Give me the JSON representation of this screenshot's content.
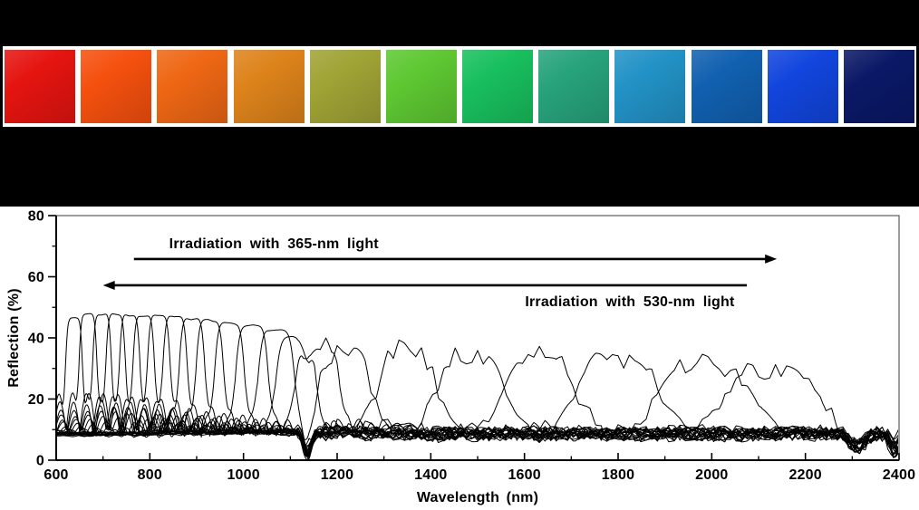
{
  "window": {
    "background": "#000000"
  },
  "swatch_strip": {
    "description": "photographs of the photonic film at successive irradiation states, red to blue",
    "panel_bg": "#ffffff",
    "colors": [
      "#e51410",
      "#f5500e",
      "#ee6714",
      "#dd831b",
      "#a0a335",
      "#5ec832",
      "#18bf5e",
      "#27a37b",
      "#2292c6",
      "#1160b0",
      "#1145dd",
      "#0a1866"
    ]
  },
  "chart_data": {
    "type": "line",
    "title": "",
    "xlabel": "Wavelength (nm)",
    "ylabel": "Reflection (%)",
    "xlim": [
      600,
      2400
    ],
    "ylim": [
      0,
      80
    ],
    "x_major_ticks": [
      600,
      800,
      1000,
      1200,
      1400,
      1600,
      1800,
      2000,
      2200,
      2400
    ],
    "x_minor_step": 100,
    "y_major_ticks": [
      0,
      20,
      40,
      60,
      80
    ],
    "y_minor_step": 10,
    "grid": false,
    "legend": "none",
    "line_color": "#000000",
    "frame_color": "#5a5a5a",
    "baseline_pct": 8.6,
    "annotations": [
      {
        "id": "uv",
        "text": "Irradiation with 365-nm light",
        "arrow_dir": "right",
        "arrow_from_nm": 766,
        "arrow_tip_nm": 2139,
        "arrow_y_pct": 65.8,
        "text_center_nm": 1065,
        "text_y_pct": 69.3
      },
      {
        "id": "vis",
        "text": "Irradiation with 530-nm light",
        "arrow_dir": "left",
        "arrow_from_nm": 2075,
        "arrow_tip_nm": 700,
        "arrow_y_pct": 57.2,
        "text_center_nm": 1825,
        "text_y_pct": 50.4
      }
    ],
    "series_description": "Reflection spectra; stop-band peak blue/red-shifts between ~640 nm and ~2200 nm upon 365-nm / 530-nm irradiation; each curve = one irradiation state (peak position, peak height %, FWHM nm, interference-fringe amplitude %).",
    "series": [
      {
        "peak_nm": 638,
        "peak_pct": 46.5,
        "fwhm_nm": 38,
        "fringe_amp_pct": 15.0,
        "kind": "narrow"
      },
      {
        "peak_nm": 668,
        "peak_pct": 47.0,
        "fwhm_nm": 40,
        "fringe_amp_pct": 14.5,
        "kind": "narrow"
      },
      {
        "peak_nm": 698,
        "peak_pct": 47.2,
        "fwhm_nm": 42,
        "fringe_amp_pct": 14.0,
        "kind": "narrow"
      },
      {
        "peak_nm": 727,
        "peak_pct": 47.2,
        "fwhm_nm": 44,
        "fringe_amp_pct": 13.5,
        "kind": "narrow"
      },
      {
        "peak_nm": 757,
        "peak_pct": 47.2,
        "fwhm_nm": 46,
        "fringe_amp_pct": 13.0,
        "kind": "narrow"
      },
      {
        "peak_nm": 787,
        "peak_pct": 47.2,
        "fwhm_nm": 48,
        "fringe_amp_pct": 12.5,
        "kind": "narrow"
      },
      {
        "peak_nm": 819,
        "peak_pct": 47.0,
        "fwhm_nm": 51,
        "fringe_amp_pct": 12.0,
        "kind": "narrow"
      },
      {
        "peak_nm": 854,
        "peak_pct": 47.0,
        "fwhm_nm": 54,
        "fringe_amp_pct": 11.0,
        "kind": "narrow"
      },
      {
        "peak_nm": 890,
        "peak_pct": 46.8,
        "fwhm_nm": 57,
        "fringe_amp_pct": 10.0,
        "kind": "narrow"
      },
      {
        "peak_nm": 928,
        "peak_pct": 46.3,
        "fwhm_nm": 61,
        "fringe_amp_pct": 9.0,
        "kind": "narrow"
      },
      {
        "peak_nm": 970,
        "peak_pct": 45.5,
        "fwhm_nm": 66,
        "fringe_amp_pct": 8.0,
        "kind": "narrow"
      },
      {
        "peak_nm": 1018,
        "peak_pct": 44.2,
        "fwhm_nm": 72,
        "fringe_amp_pct": 7.0,
        "kind": "narrow"
      },
      {
        "peak_nm": 1070,
        "peak_pct": 42.5,
        "fwhm_nm": 80,
        "fringe_amp_pct": 6.0,
        "kind": "narrow"
      },
      {
        "peak_nm": 1112,
        "peak_pct": 40.5,
        "fwhm_nm": 88,
        "fringe_amp_pct": 5.5,
        "kind": "narrow"
      },
      {
        "peak_nm": 1158,
        "peak_pct": 38.0,
        "fwhm_nm": 96,
        "fringe_amp_pct": 5.0,
        "kind": "narrow"
      },
      {
        "peak_nm": 1215,
        "peak_pct": 36.0,
        "fwhm_nm": 115,
        "fringe_amp_pct": 3.5,
        "kind": "broad"
      },
      {
        "peak_nm": 1350,
        "peak_pct": 35.0,
        "fwhm_nm": 135,
        "fringe_amp_pct": 3.5,
        "kind": "broad"
      },
      {
        "peak_nm": 1487,
        "peak_pct": 34.5,
        "fwhm_nm": 150,
        "fringe_amp_pct": 3.5,
        "kind": "broad"
      },
      {
        "peak_nm": 1632,
        "peak_pct": 34.0,
        "fwhm_nm": 165,
        "fringe_amp_pct": 3.5,
        "kind": "broad"
      },
      {
        "peak_nm": 1800,
        "peak_pct": 33.5,
        "fwhm_nm": 185,
        "fringe_amp_pct": 3.5,
        "kind": "broad"
      },
      {
        "peak_nm": 1985,
        "peak_pct": 31.5,
        "fwhm_nm": 205,
        "fringe_amp_pct": 3.0,
        "kind": "broad"
      },
      {
        "peak_nm": 2130,
        "peak_pct": 29.5,
        "fwhm_nm": 215,
        "fringe_amp_pct": 3.0,
        "kind": "broad"
      }
    ],
    "absorption_dips_nm": [
      1137,
      2310,
      2390
    ],
    "noise_pct": {
      "below_1105nm": 0.35,
      "above_1125nm": 2.1
    }
  }
}
